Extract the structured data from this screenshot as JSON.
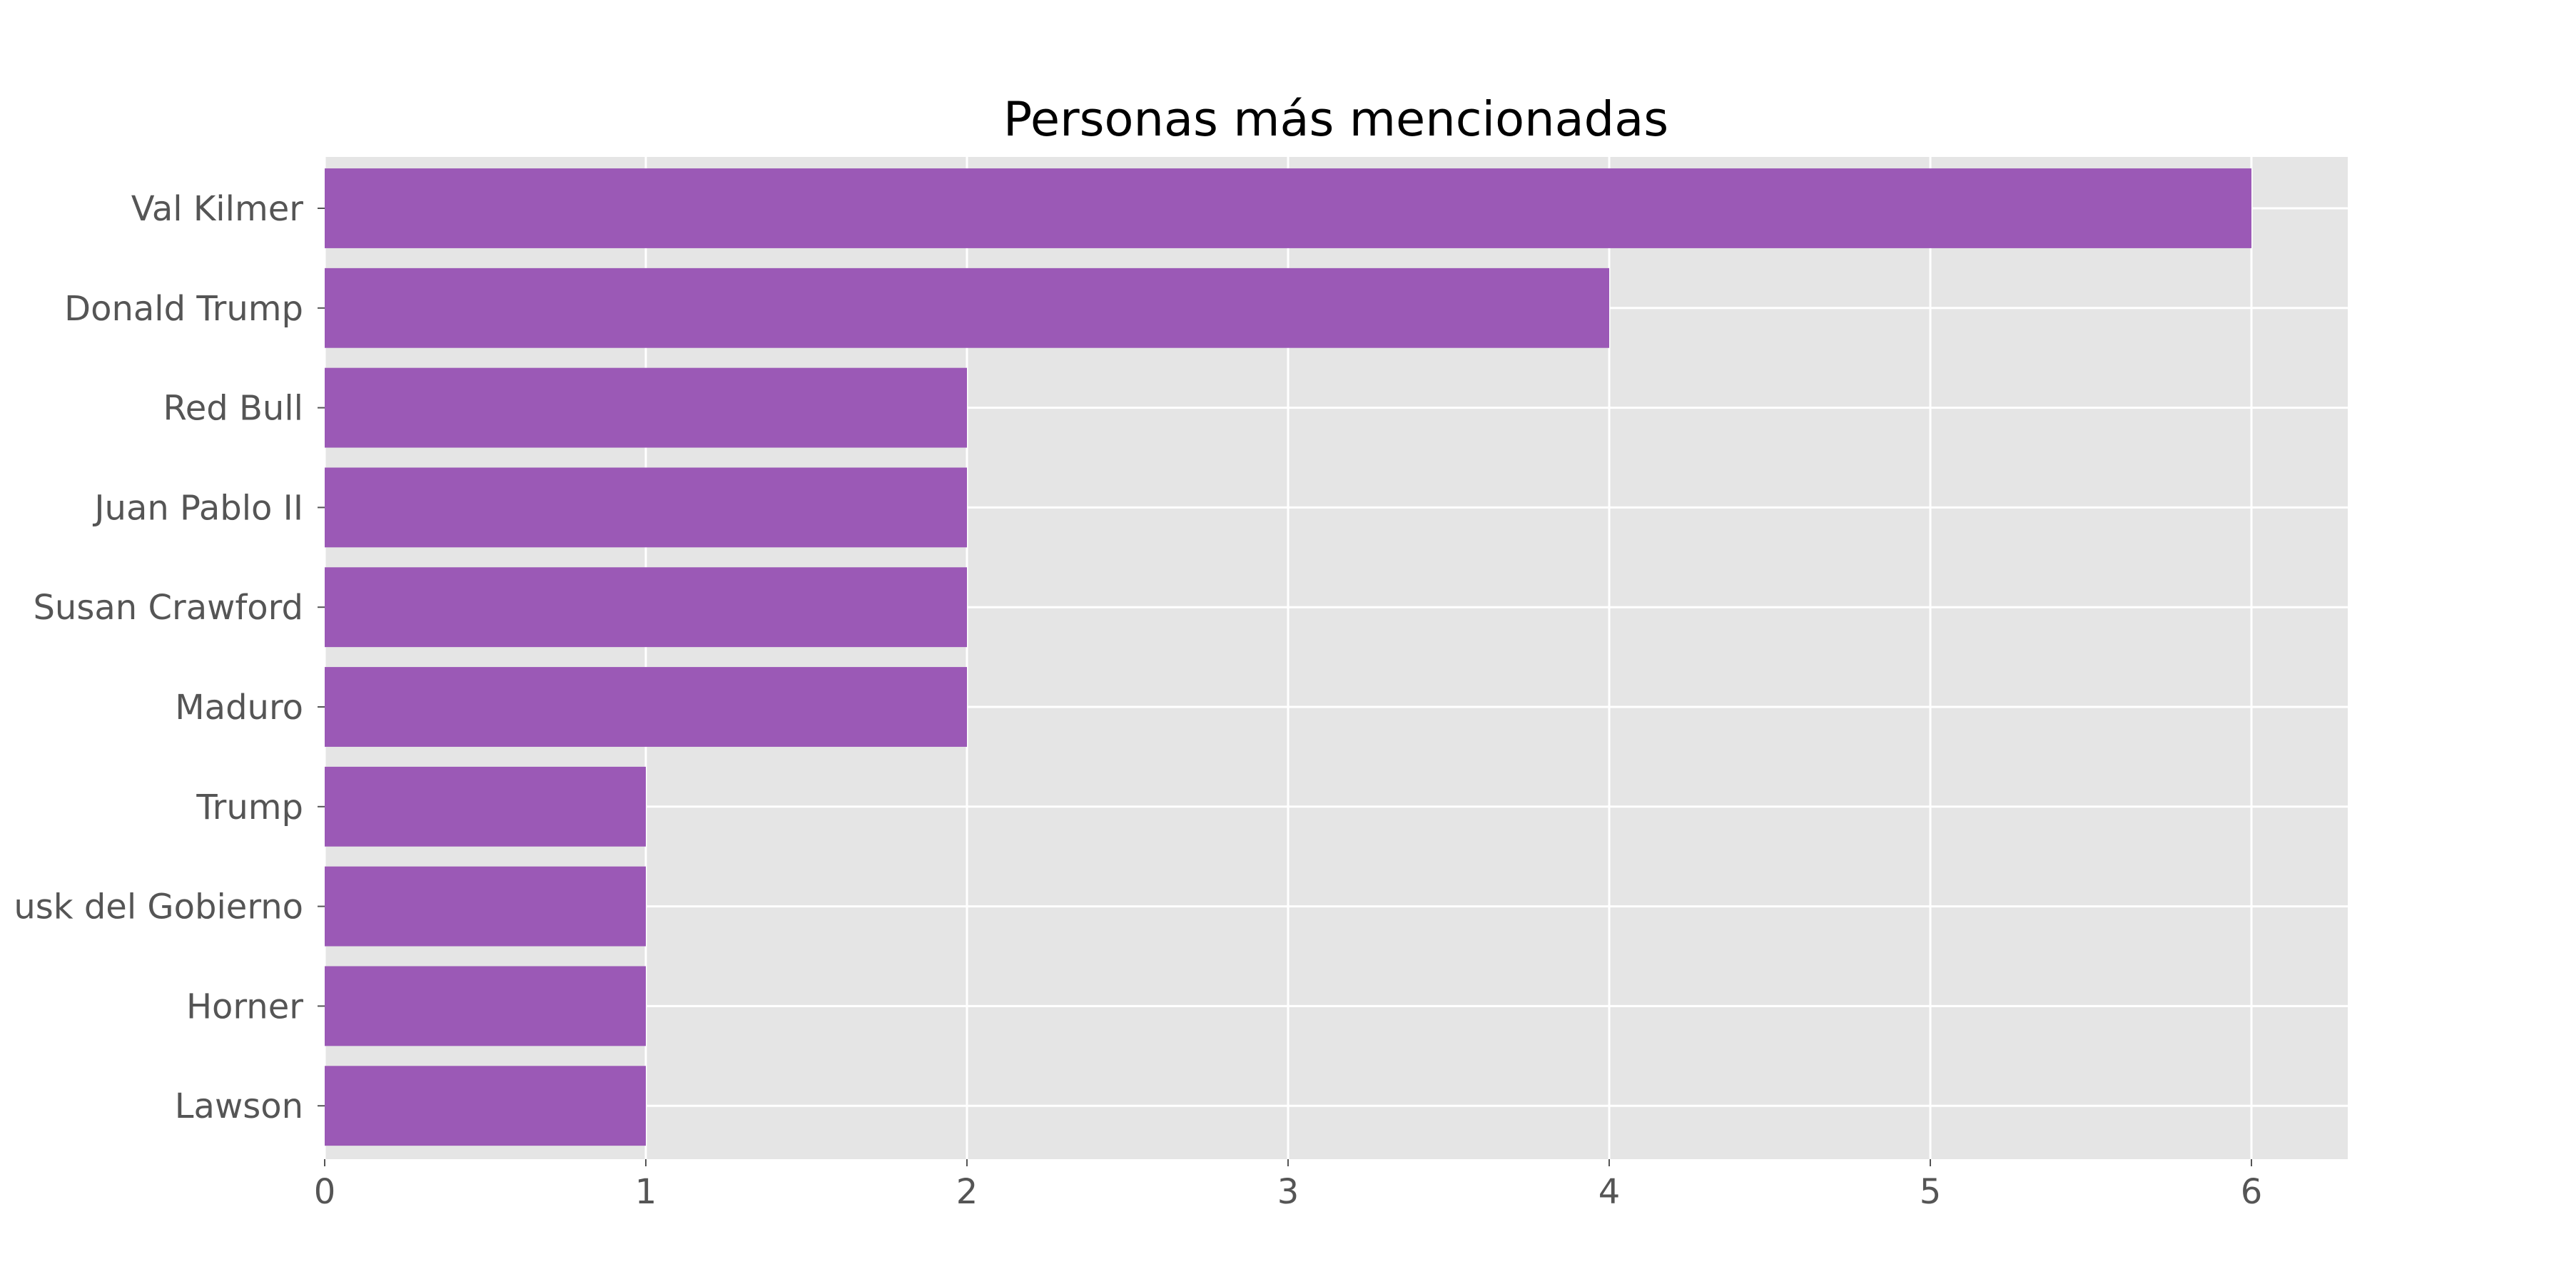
{
  "chart_data": {
    "type": "bar",
    "orientation": "horizontal",
    "title": "Personas más mencionadas",
    "xlabel": "",
    "ylabel": "",
    "categories": [
      "Val Kilmer",
      "Donald Trump",
      "Red Bull",
      "Juan Pablo II",
      "Susan Crawford",
      "Maduro",
      "Trump",
      "usk del Gobierno",
      "Horner",
      "Lawson"
    ],
    "values": [
      6,
      4,
      2,
      2,
      2,
      2,
      1,
      1,
      1,
      1
    ],
    "xlim": [
      0,
      6.3
    ],
    "xticks": [
      0,
      1,
      2,
      3,
      4,
      5,
      6
    ],
    "grid": true,
    "bar_color": "#9b59b6",
    "background_color": "#e5e5e5",
    "grid_color": "#ffffff"
  }
}
